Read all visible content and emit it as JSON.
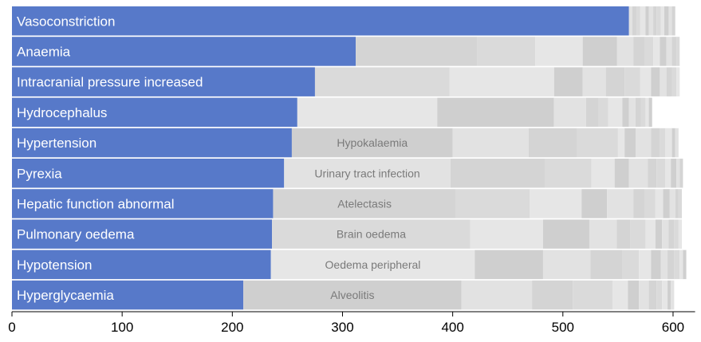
{
  "chart_data": {
    "type": "bar",
    "orientation": "horizontal",
    "stacked": true,
    "xlim": [
      0,
      620
    ],
    "xticks": [
      0,
      100,
      200,
      300,
      400,
      500,
      600
    ],
    "colors": {
      "primary": "#5779c9",
      "rest": [
        "#e2e2e2",
        "#d4d4d4",
        "#dadada",
        "#e6e6e6",
        "#cfcfcf"
      ]
    },
    "rows": [
      {
        "label": "Vasoconstriction",
        "value": 560,
        "segments": [
          560,
          3,
          4,
          3,
          5,
          3,
          4,
          3,
          4,
          3,
          4,
          3,
          3
        ],
        "second_label": ""
      },
      {
        "label": "Anaemia",
        "value": 312,
        "segments": [
          312,
          110,
          53,
          43,
          31,
          15,
          10,
          8,
          6,
          6,
          5,
          4,
          3
        ],
        "second_label": ""
      },
      {
        "label": "Intracranial pressure increased",
        "value": 275,
        "segments": [
          275,
          122,
          95,
          26,
          21,
          17,
          14,
          10,
          8,
          6,
          5,
          4,
          3
        ],
        "second_label": ""
      },
      {
        "label": "Hydrocephalus",
        "value": 259,
        "segments": [
          259,
          127,
          106,
          29,
          11,
          9,
          13,
          6,
          6,
          5,
          4,
          3,
          3
        ],
        "second_label": ""
      },
      {
        "label": "Hypertension",
        "value": 254,
        "segments": [
          254,
          146,
          69,
          44,
          37,
          6,
          10,
          14,
          8,
          5,
          6,
          3,
          3
        ],
        "second_label": "Hypokalaemia"
      },
      {
        "label": "Pyrexia",
        "value": 247,
        "segments": [
          247,
          151,
          86,
          42,
          21,
          13,
          17,
          8,
          8,
          5,
          5,
          3,
          3
        ],
        "second_label": "Urinary tract infection"
      },
      {
        "label": "Hepatic function abnormal",
        "value": 237,
        "segments": [
          237,
          166,
          67,
          47,
          23,
          24,
          10,
          10,
          7,
          6,
          5,
          3,
          3
        ],
        "second_label": "Atelectasis"
      },
      {
        "label": "Pulmonary oedema",
        "value": 236,
        "segments": [
          236,
          180,
          66,
          42,
          25,
          12,
          14,
          9,
          6,
          6,
          5,
          4,
          3
        ],
        "second_label": "Brain oedema"
      },
      {
        "label": "Hypotension",
        "value": 235,
        "segments": [
          235,
          185,
          62,
          43,
          29,
          15,
          11,
          9,
          6,
          6,
          5,
          3,
          3
        ],
        "second_label": "Oedema peripheral"
      },
      {
        "label": "Hyperglycaemia",
        "value": 210,
        "segments": [
          210,
          198,
          64,
          37,
          36,
          14,
          10,
          9,
          7,
          5,
          5,
          3,
          3
        ],
        "second_label": "Alveolitis"
      }
    ]
  }
}
